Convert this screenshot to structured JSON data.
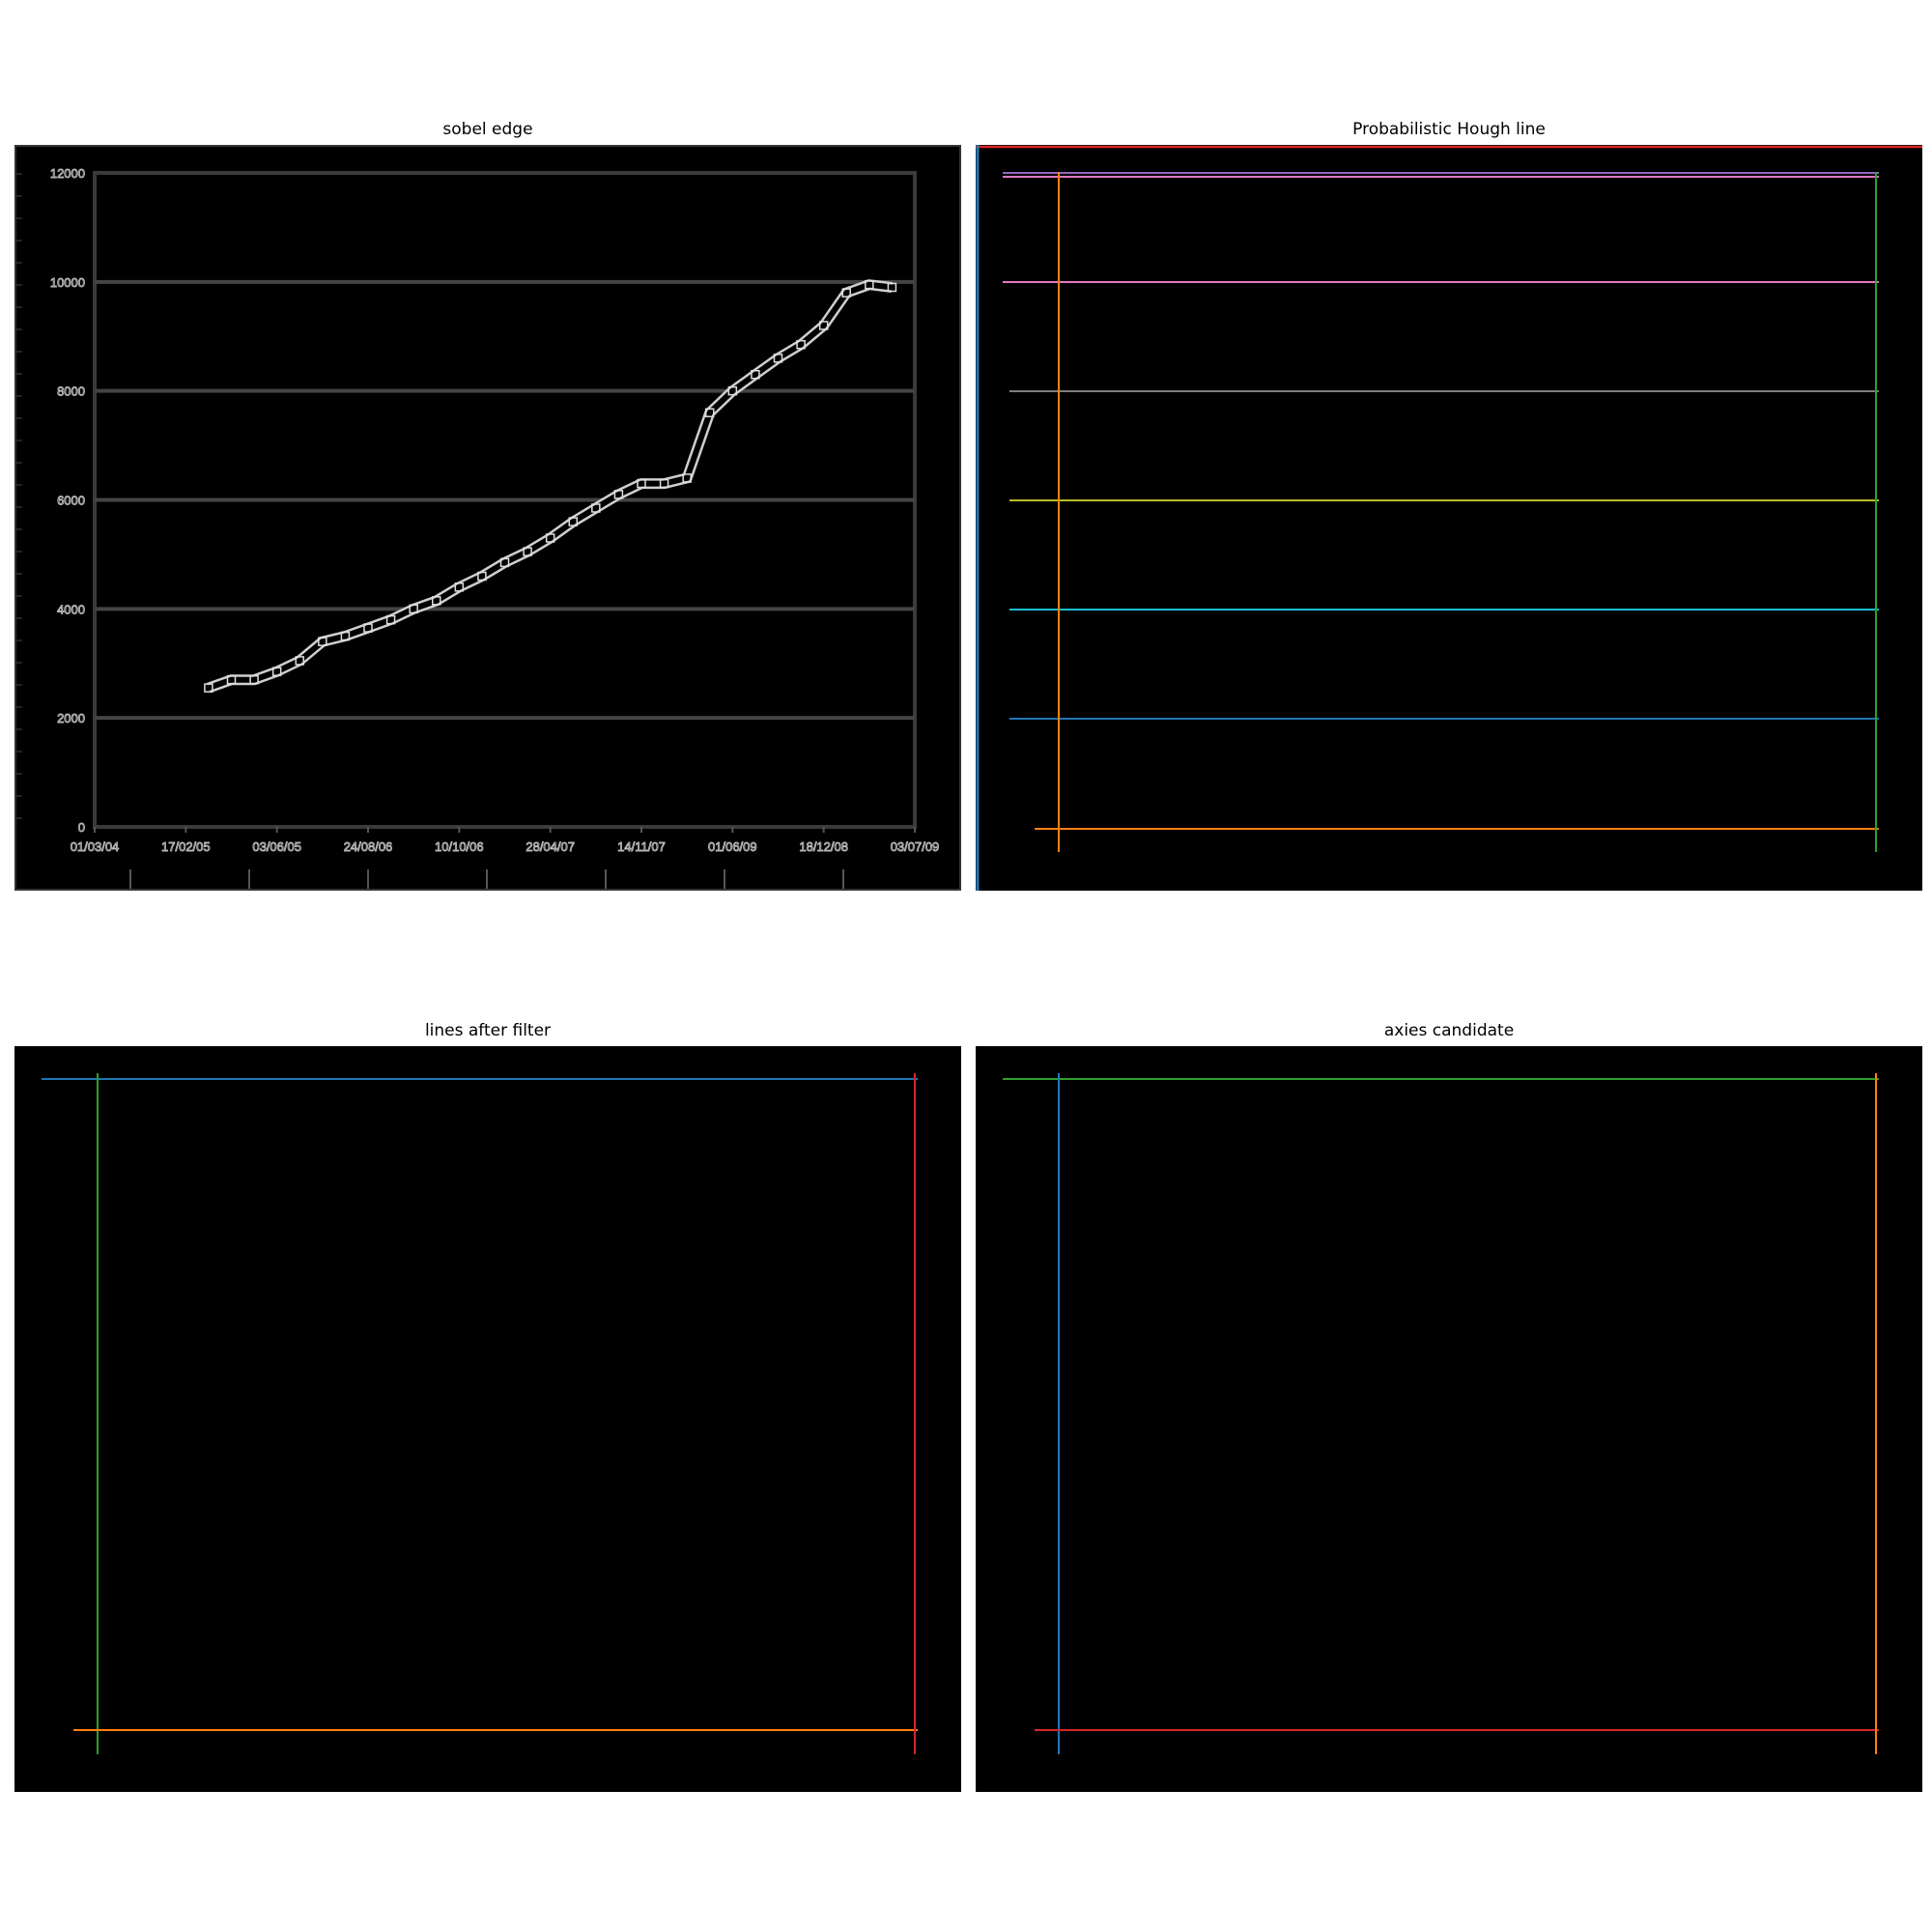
{
  "panels": {
    "sobel": {
      "title": "sobel edge"
    },
    "hough": {
      "title": "Probabilistic Hough line"
    },
    "filtered": {
      "title": "lines after filter"
    },
    "candidate": {
      "title": "axies candidate"
    }
  },
  "chart_data": {
    "type": "line",
    "title": "",
    "xlabel": "",
    "ylabel": "",
    "x_tick_labels": [
      "01/03/04",
      "17/02/05",
      "03/06/05",
      "24/08/06",
      "10/10/06",
      "28/04/07",
      "14/11/07",
      "01/06/09",
      "18/12/08",
      "03/07/09"
    ],
    "y_ticks": [
      0,
      2000,
      4000,
      6000,
      8000,
      10000,
      12000
    ],
    "ylim": [
      0,
      12000
    ],
    "x_index_range": [
      0,
      9
    ],
    "grid": true,
    "series": [
      {
        "values_x": [
          1.25,
          1.5,
          1.75,
          2.0,
          2.25,
          2.5,
          2.75,
          3.0,
          3.25,
          3.5,
          3.75,
          4.0,
          4.25,
          4.5,
          4.75,
          5.0,
          5.25,
          5.5,
          5.75,
          6.0,
          6.25,
          6.5,
          6.75,
          7.0,
          7.25,
          7.5,
          7.75,
          8.0,
          8.25,
          8.5,
          8.75
        ],
        "values_y": [
          2550,
          2700,
          2700,
          2850,
          3050,
          3400,
          3500,
          3650,
          3800,
          4000,
          4150,
          4400,
          4600,
          4850,
          5050,
          5300,
          5600,
          5850,
          6100,
          6300,
          6300,
          6400,
          7600,
          8000,
          8300,
          8600,
          8850,
          9200,
          9800,
          9950,
          9900
        ]
      }
    ]
  },
  "hough_lines": {
    "colors": [
      "#1f77b4",
      "#ff7f0e",
      "#2ca02c",
      "#d62728",
      "#9467bd",
      "#8c564b",
      "#e377c2",
      "#7f7f7f",
      "#bcbd22",
      "#17becf"
    ]
  },
  "filter_lines": {
    "colors": {
      "top": "#1f77b4",
      "left": "#2ca02c",
      "bottom": "#ff7f0e",
      "right": "#d62728"
    }
  },
  "candidate_lines": {
    "colors": {
      "top": "#2ca02c",
      "left": "#1f77b4",
      "bottom": "#d62728",
      "right": "#ff7f0e"
    }
  }
}
